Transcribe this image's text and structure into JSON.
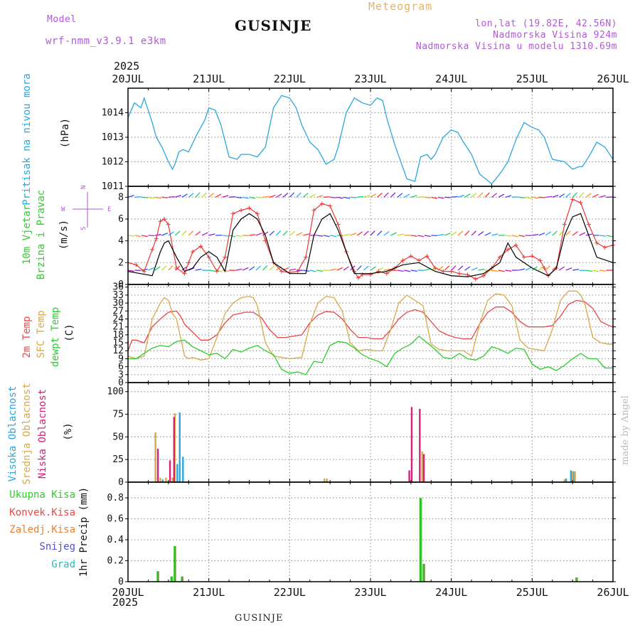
{
  "header": {
    "model_label": "Model",
    "model_name": "wrf-nmm_v3.9.1  e3km",
    "station": "GUSINJE",
    "product": "Meteogram",
    "coords": "lon,lat (19.82E, 42.56N)",
    "elevation": "Nadmorska Visina 924m",
    "model_elevation": "Nadmorska Visina u modelu 1310.69m",
    "year_top": "2025",
    "year_bottom": "2025"
  },
  "footer": {
    "station": "GUSINJE",
    "watermark": "made by Angel"
  },
  "time_axis": {
    "labels": [
      "20JUL",
      "21JUL",
      "22JUL",
      "23JUL",
      "24JUL",
      "25JUL",
      "26JUL"
    ],
    "days": 6
  },
  "colors": {
    "pressure": "#2aa7e0",
    "wind_speed_max": "#e83838",
    "wind_speed": "#000000",
    "temp_2m": "#e84848",
    "temp_sfc": "#d8a84a",
    "dewpt": "#2ecc2e",
    "cloud_high": "#2aa7e0",
    "cloud_mid": "#d8a84a",
    "cloud_low": "#d8207a",
    "precip_total": "#2ecc2e",
    "precip_conv": "#e84848",
    "precip_frozen": "#f08030",
    "precip_snow": "#5050e0",
    "precip_hail": "#20c0c0",
    "label_cyan": "#2aa7e0",
    "label_green": "#2ecc2e",
    "label_red": "#e84848",
    "label_orange": "#d8a84a",
    "label_magenta": "#d8207a",
    "label_purple": "#b05ad8"
  },
  "chart_data": [
    {
      "type": "line",
      "panel": "pressure",
      "ylabel_side": "Pritisak na nivou mora",
      "ylabel_unit": "(hPa)",
      "ylim": [
        1011,
        1015
      ],
      "yticks": [
        1011,
        1012,
        1013,
        1014
      ],
      "grid": true,
      "series": [
        {
          "name": "Pritisak na nivou mora",
          "x": [
            0,
            0.08,
            0.16,
            0.2,
            0.3,
            0.35,
            0.42,
            0.5,
            0.55,
            0.58,
            0.63,
            0.68,
            0.75,
            0.85,
            0.95,
            1.0,
            1.08,
            1.15,
            1.25,
            1.35,
            1.4,
            1.5,
            1.6,
            1.7,
            1.8,
            1.9,
            2.0,
            2.08,
            2.15,
            2.25,
            2.35,
            2.45,
            2.55,
            2.6,
            2.7,
            2.8,
            2.9,
            3.0,
            3.08,
            3.15,
            3.2,
            3.3,
            3.45,
            3.55,
            3.62,
            3.7,
            3.75,
            3.8,
            3.9,
            4.0,
            4.08,
            4.15,
            4.25,
            4.35,
            4.5,
            4.55,
            4.62,
            4.7,
            4.8,
            4.9,
            5.0,
            5.08,
            5.15,
            5.25,
            5.4,
            5.5,
            5.58,
            5.62,
            5.7,
            5.8,
            5.9,
            6.0
          ],
          "y": [
            1013.8,
            1014.4,
            1014.2,
            1014.6,
            1013.6,
            1013.0,
            1012.6,
            1012.0,
            1011.7,
            1011.9,
            1012.4,
            1012.5,
            1012.4,
            1013.1,
            1013.7,
            1014.2,
            1014.1,
            1013.5,
            1012.2,
            1012.1,
            1012.3,
            1012.3,
            1012.2,
            1012.6,
            1014.2,
            1014.7,
            1014.6,
            1014.2,
            1013.5,
            1012.8,
            1012.5,
            1011.9,
            1012.1,
            1012.6,
            1014.0,
            1014.6,
            1014.4,
            1014.3,
            1014.6,
            1014.5,
            1013.8,
            1012.7,
            1011.3,
            1011.2,
            1012.2,
            1012.3,
            1012.1,
            1012.3,
            1013.0,
            1013.3,
            1013.2,
            1012.8,
            1012.3,
            1011.5,
            1011.1,
            1011.3,
            1011.6,
            1012.0,
            1012.9,
            1013.6,
            1013.4,
            1013.3,
            1013.0,
            1012.1,
            1012.0,
            1011.7,
            1011.8,
            1011.8,
            1012.2,
            1012.8,
            1012.6,
            1012.1
          ]
        }
      ]
    },
    {
      "type": "line",
      "panel": "wind",
      "ylabel_side": [
        "10m Vjetar",
        "Brzina i Pravac"
      ],
      "ylabel_unit": "(m/s)",
      "direction_legend": {
        "n": "N",
        "w": "W",
        "e": "E",
        "s": "S"
      },
      "ylim": [
        0,
        9
      ],
      "yticks": [
        0,
        2,
        4,
        6,
        8
      ],
      "grid": true,
      "series": [
        {
          "name": "wind speed (max)",
          "x": [
            0,
            0.1,
            0.2,
            0.3,
            0.35,
            0.4,
            0.45,
            0.5,
            0.6,
            0.7,
            0.75,
            0.8,
            0.9,
            1.0,
            1.1,
            1.2,
            1.3,
            1.4,
            1.5,
            1.6,
            1.7,
            1.8,
            1.9,
            2.0,
            2.1,
            2.2,
            2.3,
            2.4,
            2.5,
            2.6,
            2.7,
            2.8,
            2.85,
            2.9,
            3.0,
            3.1,
            3.2,
            3.3,
            3.4,
            3.5,
            3.6,
            3.7,
            3.8,
            3.9,
            4.0,
            4.1,
            4.2,
            4.3,
            4.4,
            4.5,
            4.6,
            4.7,
            4.8,
            4.9,
            5.0,
            5.1,
            5.15,
            5.2,
            5.3,
            5.4,
            5.5,
            5.6,
            5.7,
            5.8,
            5.9,
            6.0
          ],
          "y": [
            2.0,
            1.8,
            1.2,
            3.2,
            4.2,
            5.8,
            6.0,
            5.5,
            1.5,
            1.0,
            2.0,
            3.0,
            3.5,
            2.5,
            1.2,
            2.5,
            6.5,
            6.8,
            7.0,
            6.5,
            4.0,
            2.0,
            1.2,
            1.1,
            1.2,
            2.5,
            6.8,
            7.4,
            7.2,
            5.5,
            3.0,
            1.2,
            0.6,
            0.9,
            0.9,
            1.2,
            1.0,
            1.5,
            2.2,
            2.6,
            2.2,
            2.6,
            1.5,
            1.2,
            1.2,
            1.0,
            0.9,
            0.5,
            0.8,
            1.5,
            2.5,
            3.2,
            3.6,
            2.5,
            2.6,
            2.2,
            1.5,
            0.8,
            1.5,
            5.5,
            7.8,
            7.5,
            5.5,
            3.8,
            3.4,
            3.6
          ]
        },
        {
          "name": "wind speed",
          "x": [
            0,
            0.15,
            0.3,
            0.4,
            0.45,
            0.5,
            0.6,
            0.7,
            0.8,
            0.9,
            1.0,
            1.1,
            1.2,
            1.3,
            1.4,
            1.5,
            1.6,
            1.7,
            1.8,
            2.0,
            2.2,
            2.3,
            2.4,
            2.5,
            2.6,
            2.7,
            2.8,
            3.0,
            3.2,
            3.4,
            3.6,
            3.8,
            4.0,
            4.2,
            4.4,
            4.6,
            4.7,
            4.8,
            5.0,
            5.2,
            5.3,
            5.4,
            5.5,
            5.6,
            5.7,
            5.8,
            6.0
          ],
          "y": [
            1.2,
            1.0,
            0.8,
            3.0,
            3.8,
            4.0,
            2.5,
            1.2,
            1.5,
            2.5,
            3.0,
            2.5,
            1.2,
            5.0,
            6.0,
            6.5,
            6.0,
            4.5,
            2.0,
            1.0,
            1.0,
            4.5,
            6.0,
            6.5,
            5.0,
            3.0,
            1.0,
            1.0,
            1.2,
            1.8,
            2.0,
            1.2,
            0.8,
            0.7,
            1.0,
            2.0,
            3.8,
            2.5,
            1.5,
            0.8,
            1.5,
            4.5,
            6.2,
            6.5,
            4.5,
            2.5,
            2.0
          ]
        }
      ],
      "barb_rows": [
        8,
        4.5,
        1.3
      ]
    },
    {
      "type": "line",
      "panel": "temperature",
      "ylabel_side": [
        "2m Temp",
        "SFC Temp",
        "dewpt Temp"
      ],
      "ylabel_unit": "(C)",
      "ylim": [
        0,
        37
      ],
      "yticks": [
        0,
        3,
        6,
        9,
        12,
        15,
        18,
        21,
        24,
        27,
        30,
        33,
        36
      ],
      "grid": true,
      "series": [
        {
          "name": "2m Temp",
          "x": [
            0,
            0.05,
            0.1,
            0.2,
            0.3,
            0.4,
            0.5,
            0.6,
            0.65,
            0.7,
            0.8,
            0.9,
            1.0,
            1.1,
            1.2,
            1.3,
            1.45,
            1.55,
            1.65,
            1.75,
            1.85,
            1.95,
            2.05,
            2.15,
            2.25,
            2.35,
            2.45,
            2.55,
            2.65,
            2.75,
            2.85,
            2.95,
            3.05,
            3.15,
            3.25,
            3.35,
            3.45,
            3.55,
            3.65,
            3.75,
            3.85,
            3.95,
            4.05,
            4.15,
            4.25,
            4.35,
            4.45,
            4.55,
            4.65,
            4.75,
            4.85,
            4.95,
            5.05,
            5.15,
            5.25,
            5.35,
            5.45,
            5.55,
            5.65,
            5.75,
            5.85,
            5.95,
            6.0
          ],
          "y": [
            12.0,
            16.0,
            16.0,
            15.0,
            21.0,
            24.0,
            26.5,
            27.0,
            25.0,
            22.0,
            19.0,
            16.0,
            16.0,
            18.0,
            22.5,
            25.5,
            26.5,
            26.5,
            24.5,
            20.0,
            17.0,
            17.0,
            17.5,
            18.0,
            22.5,
            25.5,
            26.8,
            26.5,
            24.0,
            20.0,
            17.0,
            17.0,
            16.5,
            16.5,
            20.0,
            24.0,
            26.5,
            27.5,
            26.5,
            23.0,
            19.5,
            18.0,
            17.0,
            16.5,
            16.5,
            22.0,
            26.5,
            28.5,
            28.5,
            26.5,
            23.0,
            21.0,
            21.0,
            21.0,
            21.5,
            25.0,
            29.5,
            31.0,
            30.5,
            28.0,
            23.0,
            21.5,
            21.0
          ]
        },
        {
          "name": "SFC Temp",
          "x": [
            0,
            0.1,
            0.2,
            0.3,
            0.35,
            0.4,
            0.45,
            0.5,
            0.55,
            0.6,
            0.7,
            0.75,
            0.8,
            0.9,
            1.0,
            1.1,
            1.2,
            1.3,
            1.4,
            1.5,
            1.55,
            1.6,
            1.7,
            1.8,
            2.0,
            2.15,
            2.25,
            2.35,
            2.45,
            2.55,
            2.65,
            2.75,
            2.85,
            2.95,
            3.05,
            3.15,
            3.25,
            3.35,
            3.45,
            3.55,
            3.65,
            3.75,
            3.85,
            3.95,
            4.05,
            4.15,
            4.25,
            4.35,
            4.45,
            4.55,
            4.65,
            4.75,
            4.85,
            4.95,
            5.05,
            5.15,
            5.25,
            5.35,
            5.45,
            5.55,
            5.6,
            5.65,
            5.75,
            5.85,
            5.95,
            6.0
          ],
          "y": [
            10.0,
            9.0,
            10.0,
            24.0,
            27.0,
            30.0,
            32.0,
            31.0,
            26.0,
            24.0,
            10.0,
            9.0,
            9.5,
            8.5,
            9.0,
            17.0,
            26.0,
            30.0,
            32.0,
            32.5,
            32.0,
            29.0,
            15.0,
            10.0,
            9.0,
            9.5,
            22.0,
            30.0,
            32.5,
            32.0,
            27.0,
            15.0,
            12.0,
            12.5,
            12.0,
            12.0,
            20.0,
            30.0,
            33.0,
            31.0,
            29.0,
            14.5,
            12.5,
            12.0,
            12.0,
            12.0,
            10.0,
            22.0,
            31.0,
            33.5,
            33.0,
            29.0,
            16.0,
            13.0,
            12.5,
            12.0,
            20.0,
            31.0,
            34.5,
            34.5,
            33.0,
            30.0,
            17.0,
            15.0,
            14.5,
            14.5
          ]
        },
        {
          "name": "dewpt Temp",
          "x": [
            0,
            0.1,
            0.2,
            0.3,
            0.4,
            0.5,
            0.6,
            0.7,
            0.8,
            0.9,
            1.0,
            1.1,
            1.2,
            1.3,
            1.4,
            1.5,
            1.6,
            1.7,
            1.8,
            1.9,
            2.0,
            2.1,
            2.2,
            2.3,
            2.4,
            2.5,
            2.6,
            2.7,
            2.8,
            2.9,
            3.0,
            3.1,
            3.2,
            3.3,
            3.4,
            3.5,
            3.6,
            3.7,
            3.8,
            3.9,
            4.0,
            4.1,
            4.2,
            4.3,
            4.4,
            4.5,
            4.6,
            4.7,
            4.8,
            4.9,
            5.0,
            5.1,
            5.2,
            5.3,
            5.4,
            5.5,
            5.6,
            5.7,
            5.8,
            5.9,
            6.0
          ],
          "y": [
            9.0,
            9.0,
            11.0,
            13.0,
            14.0,
            13.5,
            15.5,
            16.0,
            13.5,
            12.0,
            10.5,
            11.0,
            9.0,
            12.5,
            11.5,
            13.0,
            14.0,
            12.0,
            10.5,
            5.0,
            3.5,
            4.0,
            3.0,
            8.0,
            7.5,
            14.0,
            15.5,
            15.0,
            13.0,
            10.5,
            9.0,
            8.0,
            6.0,
            11.0,
            13.0,
            14.5,
            17.5,
            15.0,
            12.5,
            9.5,
            9.0,
            11.0,
            9.0,
            8.5,
            10.0,
            13.5,
            12.5,
            11.0,
            13.0,
            12.5,
            7.0,
            5.0,
            6.0,
            4.5,
            6.5,
            9.0,
            11.0,
            9.0,
            9.0,
            5.5,
            5.5
          ]
        }
      ]
    },
    {
      "type": "bar",
      "panel": "cloud",
      "ylabel_side": [
        "Visoka Oblacnost",
        "Srednja Oblacnost",
        "Niska Oblacnost"
      ],
      "ylabel_unit": "(%)",
      "ylim": [
        0,
        110
      ],
      "yticks": [
        0,
        25,
        50,
        75,
        100
      ],
      "grid": true,
      "series": [
        {
          "name": "Visoka Oblacnost",
          "x": [
            0.43,
            0.61,
            0.64,
            0.68,
            5.42,
            5.48,
            5.51
          ],
          "values": [
            3,
            20,
            77,
            28,
            4,
            13,
            12
          ]
        },
        {
          "name": "Srednja Oblacnost",
          "x": [
            0.34,
            0.4,
            0.47,
            0.55,
            0.58,
            2.43,
            2.46,
            3.64,
            5.4,
            5.5,
            5.53
          ],
          "values": [
            55,
            5,
            5,
            5,
            76,
            4,
            4,
            34,
            3,
            12,
            12
          ]
        },
        {
          "name": "Niska Oblacnost",
          "x": [
            0.37,
            0.52,
            0.57,
            3.48,
            3.51,
            3.61,
            3.66
          ],
          "values": [
            37,
            24,
            72,
            13,
            83,
            81,
            31
          ]
        }
      ]
    },
    {
      "type": "bar",
      "panel": "precip",
      "ylabel_side": "1hr Precip (mm)",
      "legend": [
        "Ukupna Kisa",
        "Konvek.Kisa",
        "Zaledj.Kisa",
        "Snijeg",
        "Grad"
      ],
      "ylim": [
        0,
        0.95
      ],
      "yticks": [
        0,
        0.2,
        0.4,
        0.6,
        0.8
      ],
      "grid": true,
      "series": [
        {
          "name": "Ukupna Kisa",
          "x": [
            0.37,
            0.54,
            0.58,
            0.67,
            3.62,
            3.66,
            5.55
          ],
          "values": [
            0.1,
            0.05,
            0.34,
            0.05,
            0.8,
            0.17,
            0.04
          ]
        },
        {
          "name": "Konvek.Kisa",
          "x": [
            0.37,
            0.54,
            0.58,
            0.67,
            3.62,
            3.66,
            5.55
          ],
          "values": [
            0.1,
            0.05,
            0.34,
            0.05,
            0.8,
            0.17,
            0.04
          ]
        }
      ]
    }
  ]
}
